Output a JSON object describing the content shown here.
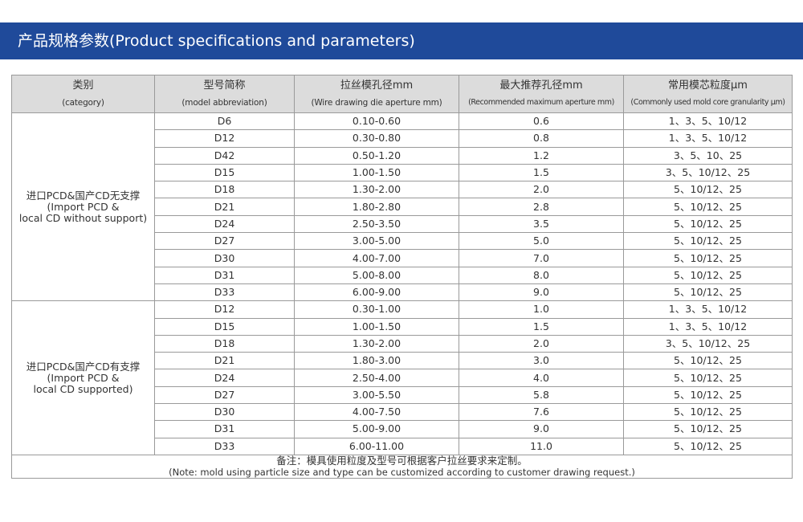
{
  "banner": {
    "title": "产品规格参数(Product specifications and parameters)"
  },
  "headers": [
    {
      "cn": "类别",
      "en": "(category)"
    },
    {
      "cn": "型号简称",
      "en": "(model abbreviation)"
    },
    {
      "cn": "拉丝模孔径mm",
      "en": "(Wire drawing die aperture mm)"
    },
    {
      "cn": "最大推荐孔径mm",
      "en": "(Recommended maximum aperture mm)"
    },
    {
      "cn": "常用模芯粒度μm",
      "en": "(Commonly used mold core granularity μm)"
    }
  ],
  "groups": [
    {
      "category": [
        "进口PCD&国产CD无支撑",
        "(Import PCD &",
        "local CD without support)"
      ],
      "rows": [
        [
          "D6",
          "0.10-0.60",
          "0.6",
          "1、3、5、10/12"
        ],
        [
          "D12",
          "0.30-0.80",
          "0.8",
          "1、3、5、10/12"
        ],
        [
          "D42",
          "0.50-1.20",
          "1.2",
          "3、5、10、25"
        ],
        [
          "D15",
          "1.00-1.50",
          "1.5",
          "3、5、10/12、25"
        ],
        [
          "D18",
          "1.30-2.00",
          "2.0",
          "5、10/12、25"
        ],
        [
          "D21",
          "1.80-2.80",
          "2.8",
          "5、10/12、25"
        ],
        [
          "D24",
          "2.50-3.50",
          "3.5",
          "5、10/12、25"
        ],
        [
          "D27",
          "3.00-5.00",
          "5.0",
          "5、10/12、25"
        ],
        [
          "D30",
          "4.00-7.00",
          "7.0",
          "5、10/12、25"
        ],
        [
          "D31",
          "5.00-8.00",
          "8.0",
          "5、10/12、25"
        ],
        [
          "D33",
          "6.00-9.00",
          "9.0",
          "5、10/12、25"
        ]
      ]
    },
    {
      "category": [
        "进口PCD&国产CD有支撑",
        "(Import PCD &",
        "local CD supported)"
      ],
      "rows": [
        [
          "D12",
          "0.30-1.00",
          "1.0",
          "1、3、5、10/12"
        ],
        [
          "D15",
          "1.00-1.50",
          "1.5",
          "1、3、5、10/12"
        ],
        [
          "D18",
          "1.30-2.00",
          "2.0",
          "3、5、10/12、25"
        ],
        [
          "D21",
          "1.80-3.00",
          "3.0",
          "5、10/12、25"
        ],
        [
          "D24",
          "2.50-4.00",
          "4.0",
          "5、10/12、25"
        ],
        [
          "D27",
          "3.00-5.50",
          "5.8",
          "5、10/12、25"
        ],
        [
          "D30",
          "4.00-7.50",
          "7.6",
          "5、10/12、25"
        ],
        [
          "D31",
          "5.00-9.00",
          "9.0",
          "5、10/12、25"
        ],
        [
          "D33",
          "6.00-11.00",
          "11.0",
          "5、10/12、25"
        ]
      ]
    }
  ],
  "note": {
    "cn": "备注：模具使用粒度及型号可根据客户拉丝要求来定制。",
    "en": "(Note: mold using particle size and type can be customized according to customer drawing request.)"
  }
}
